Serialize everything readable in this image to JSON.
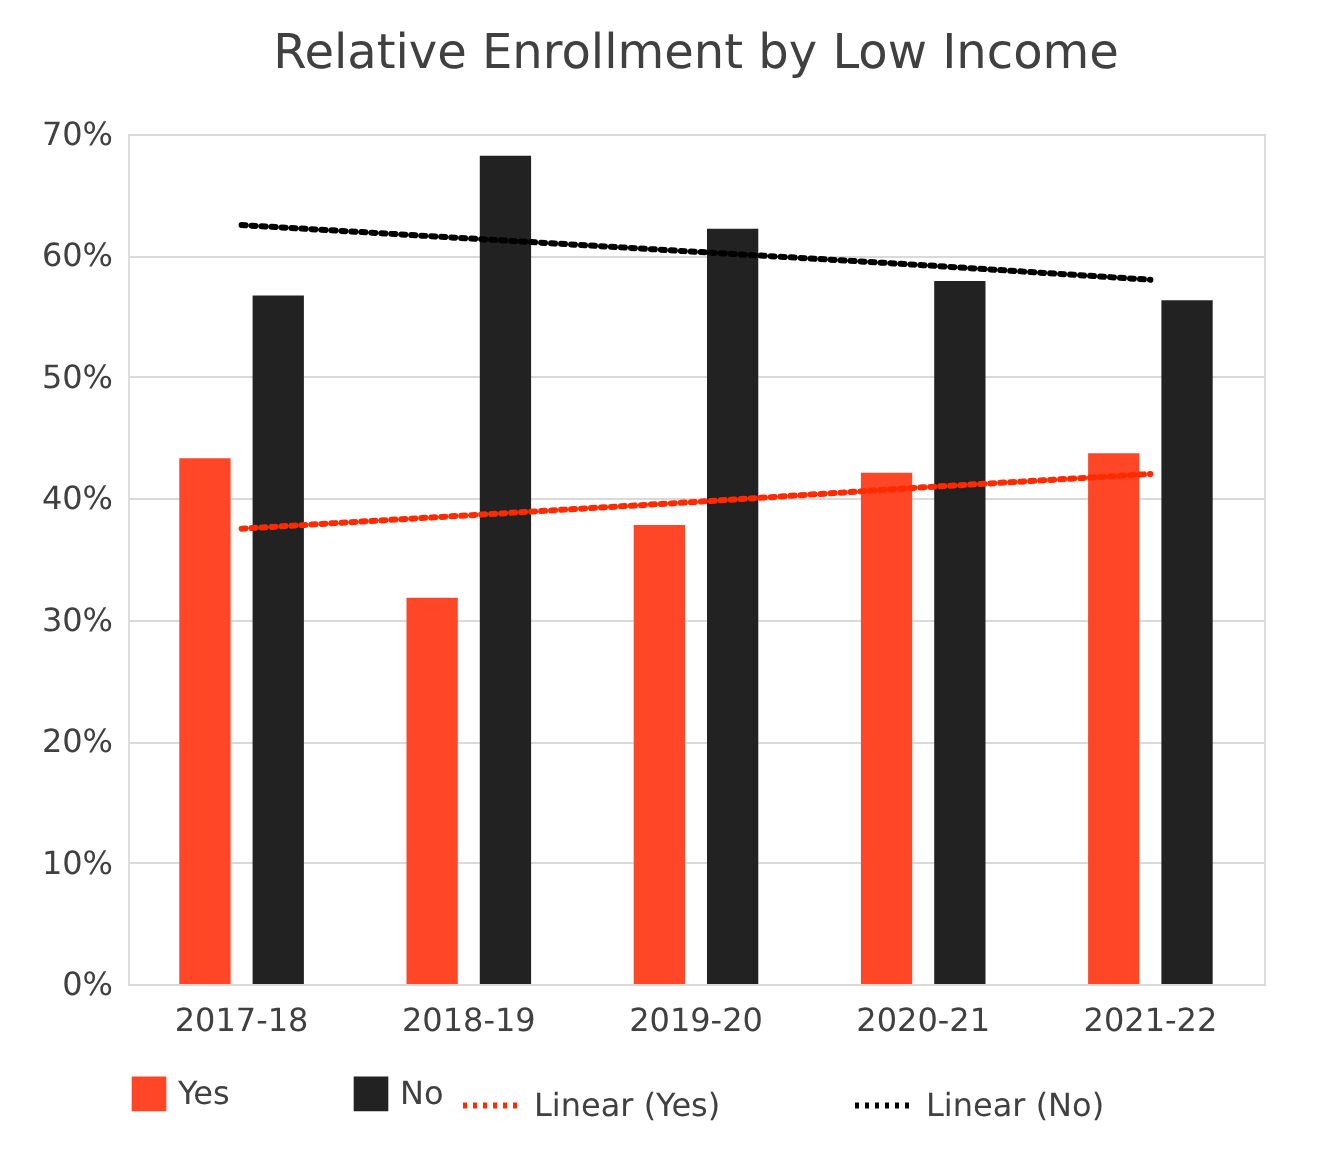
{
  "chart_data": {
    "type": "bar",
    "title": "Relative Enrollment by Low Income",
    "categories": [
      "2017-18",
      "2018-19",
      "2019-20",
      "2020-21",
      "2021-22"
    ],
    "series": [
      {
        "name": "Yes",
        "color": "#ff4626",
        "values": [
          43.3,
          31.8,
          37.8,
          42.1,
          43.7
        ]
      },
      {
        "name": "No",
        "color": "#222222",
        "values": [
          56.7,
          68.2,
          62.2,
          57.9,
          56.3
        ]
      },
      {
        "name": "Linear (Yes)",
        "type": "line",
        "line_style": "dotted",
        "color": "#ff2a00",
        "values": [
          37.5,
          38.6,
          39.7,
          40.9,
          42.0
        ]
      },
      {
        "name": "Linear (No)",
        "type": "line",
        "line_style": "dotted",
        "color": "#000000",
        "values": [
          62.5,
          61.4,
          60.3,
          59.2,
          58.0
        ]
      }
    ],
    "ylim": [
      0,
      70
    ],
    "yticks": [
      {
        "value": 0,
        "label": "0%"
      },
      {
        "value": 10,
        "label": "10%"
      },
      {
        "value": 20,
        "label": "20%"
      },
      {
        "value": 30,
        "label": "30%"
      },
      {
        "value": 40,
        "label": "40%"
      },
      {
        "value": 50,
        "label": "50%"
      },
      {
        "value": 60,
        "label": "60%"
      },
      {
        "value": 70,
        "label": "70%"
      }
    ],
    "grid": "y",
    "legend": "bottom"
  }
}
